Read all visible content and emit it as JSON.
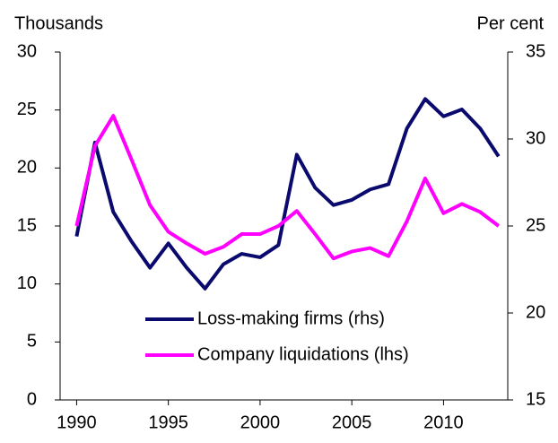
{
  "chart_data": {
    "type": "line",
    "y_label": "Thousands",
    "y2_label": "Per cent",
    "x": [
      1990,
      1991,
      1992,
      1993,
      1994,
      1995,
      1996,
      1997,
      1998,
      1999,
      2000,
      2001,
      2002,
      2003,
      2004,
      2005,
      2006,
      2007,
      2008,
      2009,
      2010,
      2011,
      2012,
      2013
    ],
    "xlim": [
      1989.1,
      2013.5
    ],
    "xticks": [
      1990,
      1995,
      2000,
      2005,
      2010
    ],
    "ylim": [
      0,
      30
    ],
    "yticks": [
      0,
      5,
      10,
      15,
      20,
      25,
      30
    ],
    "y2lim": [
      15,
      35
    ],
    "y2ticks": [
      15,
      20,
      25,
      30,
      35
    ],
    "legend": "bottom-center",
    "series": [
      {
        "name": "Loss-making firms (rhs)",
        "color": "#0a0a6e",
        "axis": "y2",
        "values": [
          24.4,
          29.8,
          25.8,
          24.1,
          22.6,
          24.0,
          22.6,
          21.4,
          22.8,
          23.4,
          23.2,
          23.9,
          29.1,
          27.2,
          26.2,
          26.5,
          27.1,
          27.4,
          30.6,
          32.3,
          31.3,
          31.7,
          30.6,
          29.0
        ]
      },
      {
        "name": "Company liquidations (lhs)",
        "color": "#ff00ff",
        "values": [
          15.0,
          21.9,
          24.5,
          20.7,
          16.8,
          14.5,
          13.5,
          12.6,
          13.2,
          14.3,
          14.3,
          15.0,
          16.3,
          14.3,
          12.2,
          12.8,
          13.1,
          12.4,
          15.4,
          19.1,
          16.1,
          16.9,
          16.2,
          15.0
        ]
      }
    ]
  }
}
